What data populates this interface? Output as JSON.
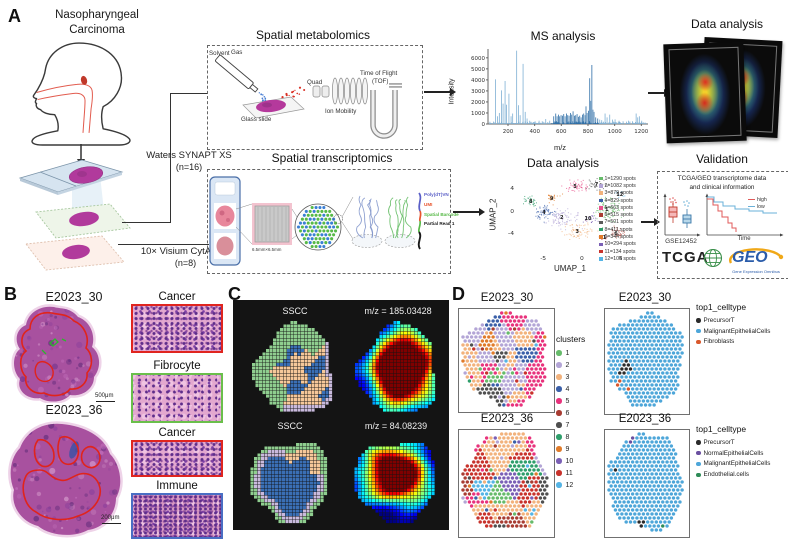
{
  "figure": {
    "panel_a_label": "A",
    "panel_b_label": "B",
    "panel_c_label": "C",
    "panel_d_label": "D"
  },
  "panel_a": {
    "condition_line1": "Nasopharyngeal",
    "condition_line2": "Carcinoma",
    "metabolomics": {
      "title": "Spatial metabolomics",
      "solvent": "Solvent",
      "gas": "Gas",
      "glass_slide": "Glass slide",
      "quad": "Quad",
      "ion_mobility": "Ion Mobility",
      "tof_line1": "Time of Flight",
      "tof_line2": "(TOF)"
    },
    "ms": {
      "title": "MS analysis",
      "xlabel": "m/z",
      "ylabel": "Intensity"
    },
    "msi_analysis_title": "Data analysis",
    "waters_line1": "Waters SYNAPT XS",
    "waters_line2": "(n=16)",
    "visium_line1": "10× Visium CytAssist",
    "visium_line2": "(n=8)",
    "transcriptomics": {
      "title": "Spatial transcriptomics",
      "chip_size": "6.5mm×6.5mm",
      "reads": [
        {
          "label": "Poly(dT)VN",
          "color": "#5a5fc7"
        },
        {
          "label": "UMI",
          "color": "#e8552e"
        },
        {
          "label": "Spatial Barcode",
          "color": "#57b947"
        },
        {
          "label": "Partial Read 1",
          "color": "#1a1a1a"
        }
      ]
    },
    "umap_title": "Data analysis",
    "validation": {
      "title": "Validation",
      "subtitle_line1": "TCGA/GEO transcriptome data",
      "subtitle_line2": "and clinical information",
      "dataset": "GSE12452",
      "time_label": "Time",
      "km_legend": [
        {
          "label": "high",
          "color": "#e05a5a"
        },
        {
          "label": "low",
          "color": "#6ab0d8"
        }
      ],
      "tcga_label": "TCGA",
      "geo_label": "GEO",
      "geo_sub": "Gene Expression Omnibus"
    }
  },
  "panel_b": {
    "sample1_label": "E2023_30",
    "sample1_scale": "500μm",
    "sample2_label": "E2023_36",
    "sample2_scale": "200μm",
    "insets": [
      {
        "label": "Cancer",
        "color": "#e0251f"
      },
      {
        "label": "Fibrocyte",
        "color": "#6abf4b"
      },
      {
        "label": "Cancer",
        "color": "#e0251f"
      },
      {
        "label": "Immune",
        "color": "#4a6fc4"
      }
    ]
  },
  "panel_c": {
    "row1_seg_label": "SSCC",
    "row1_mz_label": "m/z = 185.03428",
    "row2_seg_label": "SSCC",
    "row2_mz_label": "m/z = 84.08239",
    "seg_colors": {
      "tumor": "#f6c89a",
      "stroma": "#8fce8f",
      "immune": "#3a6fb5",
      "boundary": "#c9badd"
    }
  },
  "panel_d": {
    "map1_label": "E2023_30",
    "map2_label": "E2023_30",
    "map3_label": "E2023_36",
    "map4_label": "E2023_36",
    "clusters_title": "clusters",
    "clusters": [
      {
        "id": "1",
        "color": "#66bb6a"
      },
      {
        "id": "2",
        "color": "#b3a5d6"
      },
      {
        "id": "3",
        "color": "#f2b27c"
      },
      {
        "id": "4",
        "color": "#3a5fa8"
      },
      {
        "id": "5",
        "color": "#e8327c"
      },
      {
        "id": "6",
        "color": "#a83c32"
      },
      {
        "id": "7",
        "color": "#4f4f4f"
      },
      {
        "id": "8",
        "color": "#2e9e6b"
      },
      {
        "id": "9",
        "color": "#e07b2a"
      },
      {
        "id": "10",
        "color": "#7a5fb5"
      },
      {
        "id": "11",
        "color": "#c8322b"
      },
      {
        "id": "12",
        "color": "#55b4e5"
      }
    ],
    "celltype1": {
      "title": "top1_celltype",
      "items": [
        {
          "label": "PrecursorT",
          "color": "#2b2b2b"
        },
        {
          "label": "MalignantEpithelialCells",
          "color": "#4da6d9"
        },
        {
          "label": "Fibroblasts",
          "color": "#d9582b"
        }
      ]
    },
    "celltype2": {
      "title": "top1_celltype",
      "items": [
        {
          "label": "PrecursorT",
          "color": "#2b2b2b"
        },
        {
          "label": "NormalEpithelialCells",
          "color": "#6a4fa0"
        },
        {
          "label": "MalignantEpithelialCells",
          "color": "#4da6d9"
        },
        {
          "label": "Endothelial.cells",
          "color": "#2e8b57"
        }
      ]
    }
  },
  "chart_data": [
    {
      "name": "ms_spectrum",
      "type": "bar",
      "title": "MS analysis",
      "xlabel": "m/z",
      "ylabel": "Intensity",
      "xlim": [
        50,
        1250
      ],
      "ylim": [
        0,
        6800
      ],
      "xticks": [
        200,
        400,
        600,
        800,
        1000,
        1200
      ],
      "yticks": [
        0,
        1000,
        2000,
        3000,
        4000,
        5000,
        6000
      ],
      "bar_color": "#7fb0d4",
      "dense_color": "#2f6fa7",
      "peaks": [
        [
          104,
          4050
        ],
        [
          118,
          700
        ],
        [
          132,
          1000
        ],
        [
          148,
          3050
        ],
        [
          160,
          1850
        ],
        [
          175,
          3900
        ],
        [
          186,
          1750
        ],
        [
          204,
          2750
        ],
        [
          220,
          700
        ],
        [
          232,
          950
        ],
        [
          262,
          6650
        ],
        [
          276,
          1700
        ],
        [
          288,
          800
        ],
        [
          310,
          5450
        ],
        [
          326,
          1100
        ],
        [
          340,
          500
        ],
        [
          360,
          300
        ],
        [
          400,
          250
        ],
        [
          430,
          300
        ],
        [
          480,
          450
        ],
        [
          510,
          300
        ],
        [
          540,
          700
        ],
        [
          555,
          950
        ],
        [
          565,
          700
        ],
        [
          575,
          850
        ],
        [
          585,
          700
        ],
        [
          595,
          800
        ],
        [
          605,
          750
        ],
        [
          615,
          900
        ],
        [
          625,
          700
        ],
        [
          635,
          950
        ],
        [
          645,
          800
        ],
        [
          655,
          750
        ],
        [
          665,
          1000
        ],
        [
          675,
          850
        ],
        [
          685,
          1150
        ],
        [
          695,
          750
        ],
        [
          705,
          800
        ],
        [
          715,
          900
        ],
        [
          725,
          650
        ],
        [
          735,
          750
        ],
        [
          745,
          600
        ],
        [
          755,
          850
        ],
        [
          765,
          950
        ],
        [
          775,
          800
        ],
        [
          782,
          1600
        ],
        [
          790,
          1000
        ],
        [
          800,
          1200
        ],
        [
          810,
          4150
        ],
        [
          818,
          2100
        ],
        [
          826,
          5350
        ],
        [
          834,
          1300
        ],
        [
          842,
          1100
        ],
        [
          855,
          600
        ],
        [
          870,
          500
        ],
        [
          885,
          400
        ],
        [
          900,
          350
        ],
        [
          925,
          950
        ],
        [
          940,
          600
        ],
        [
          960,
          850
        ],
        [
          980,
          400
        ],
        [
          1000,
          420
        ],
        [
          1030,
          300
        ],
        [
          1060,
          250
        ],
        [
          1100,
          300
        ],
        [
          1130,
          250
        ],
        [
          1158,
          950
        ],
        [
          1170,
          600
        ],
        [
          1182,
          700
        ],
        [
          1200,
          300
        ]
      ]
    },
    {
      "name": "umap",
      "type": "scatter",
      "title": "Data analysis",
      "xlabel": "UMAP_1",
      "ylabel": "UMAP_2",
      "xlim": [
        -8.5,
        7.5
      ],
      "ylim": [
        -7,
        6.5
      ],
      "xticks": [
        -5,
        0,
        5
      ],
      "yticks": [
        -4,
        0,
        4
      ],
      "clusters": [
        {
          "id": 1,
          "label": "1=1290 spots",
          "count": 1290,
          "color": "#66bb6a",
          "cx": 3.2,
          "cy": 0.3,
          "sx": 1.6,
          "sy": 1.8
        },
        {
          "id": 2,
          "label": "2=1082 spots",
          "count": 1082,
          "color": "#b3a5d6",
          "cx": -2.6,
          "cy": -1.2,
          "sx": 1.8,
          "sy": 1.5
        },
        {
          "id": 3,
          "label": "3=879 spots",
          "count": 879,
          "color": "#f2b27c",
          "cx": -0.6,
          "cy": -3.6,
          "sx": 1.7,
          "sy": 1.2
        },
        {
          "id": 4,
          "label": "4=829 spots",
          "count": 829,
          "color": "#3a5fa8",
          "cx": -4.9,
          "cy": -0.2,
          "sx": 1.2,
          "sy": 1.1
        },
        {
          "id": 5,
          "label": "5=663 spots",
          "count": 663,
          "color": "#e8538c",
          "cx": -0.9,
          "cy": 4.3,
          "sx": 1.5,
          "sy": 1.0
        },
        {
          "id": 6,
          "label": "6=515 spots",
          "count": 515,
          "color": "#a83c32",
          "cx": 4.4,
          "cy": -4.0,
          "sx": 1.0,
          "sy": 0.9
        },
        {
          "id": 7,
          "label": "7=501 spots",
          "count": 501,
          "color": "#5a5a5a",
          "cx": 1.9,
          "cy": 4.7,
          "sx": 1.4,
          "sy": 0.8
        },
        {
          "id": 8,
          "label": "8=411 spots",
          "count": 411,
          "color": "#2e9e6b",
          "cx": -6.6,
          "cy": 1.7,
          "sx": 0.9,
          "sy": 0.8
        },
        {
          "id": 9,
          "label": "9=344 spots",
          "count": 344,
          "color": "#e07b2a",
          "cx": -3.9,
          "cy": 2.3,
          "sx": 0.9,
          "sy": 0.8
        },
        {
          "id": 10,
          "label": "10=294 spots",
          "count": 294,
          "color": "#7a5fb5",
          "cx": 0.8,
          "cy": -1.3,
          "sx": 1.0,
          "sy": 0.9
        },
        {
          "id": 11,
          "label": "11=134 spots",
          "count": 134,
          "color": "#c8322b",
          "cx": 2.7,
          "cy": -4.7,
          "sx": 0.8,
          "sy": 0.6
        },
        {
          "id": 12,
          "label": "12=104 spots",
          "count": 104,
          "color": "#55b4e5",
          "cx": 4.9,
          "cy": 3.0,
          "sx": 0.9,
          "sy": 0.8
        }
      ]
    }
  ]
}
